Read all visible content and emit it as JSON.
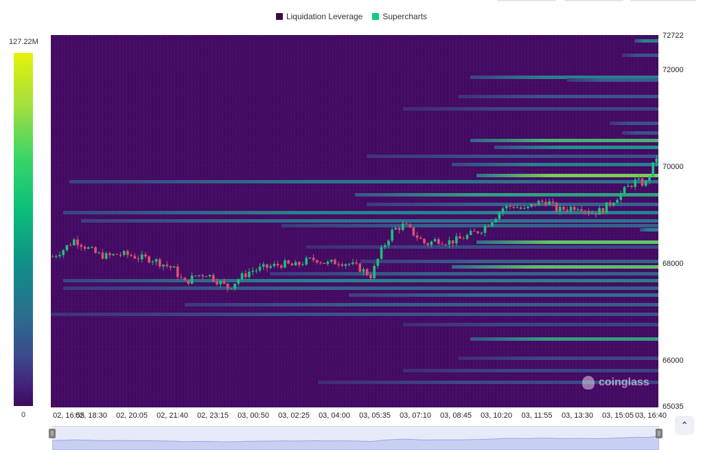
{
  "legend": [
    {
      "label": "Liquidation Leverage",
      "color": "#3b0a4e"
    },
    {
      "label": "Supercharts",
      "color": "#0ccf7a"
    }
  ],
  "colorbar": {
    "max_label": "127.22M",
    "min_label": "0"
  },
  "watermark": "coinglass",
  "colors": {
    "up": "#1fbf7a",
    "down": "#e0506e",
    "background": "#440a64"
  },
  "chart_data": {
    "type": "heatmap",
    "overlay": "candlestick",
    "title": "",
    "ylim": [
      65035,
      72722
    ],
    "y_ticks": [
      "72722",
      "72000",
      "70000",
      "68000",
      "66000",
      "65035"
    ],
    "x_ticks": [
      "02, 16:55",
      "02, 18:30",
      "02, 20:05",
      "02, 21:40",
      "02, 23:15",
      "03, 00:50",
      "03, 02:25",
      "03, 04:00",
      "03, 05:35",
      "03, 07:10",
      "03, 08:45",
      "03, 10:20",
      "03, 11:55",
      "03, 13:30",
      "03, 15:05",
      "03, 16:40"
    ],
    "colorscale_range": [
      0,
      127220000
    ],
    "price_close": [
      68150,
      68300,
      68500,
      68350,
      68200,
      68150,
      68200,
      68180,
      68120,
      68100,
      68000,
      67900,
      67600,
      67750,
      67800,
      67650,
      67500,
      67700,
      67850,
      67900,
      67950,
      68000,
      67950,
      68050,
      68100,
      68000,
      68050,
      68000,
      67900,
      67750,
      68300,
      68700,
      68800,
      68600,
      68400,
      68500,
      68450,
      68500,
      68600,
      68700,
      68900,
      69150,
      69200,
      69100,
      69250,
      69300,
      69100,
      69150,
      69200,
      69050,
      69100,
      69300,
      69500,
      69700,
      69650,
      70200
    ],
    "price_volatility": 80,
    "liquidation_bands": [
      {
        "price": 72600,
        "start": 0.96,
        "intensity": 0.45
      },
      {
        "price": 72300,
        "start": 0.94,
        "intensity": 0.3
      },
      {
        "price": 71850,
        "start": 0.69,
        "intensity": 0.45
      },
      {
        "price": 71800,
        "start": 0.85,
        "intensity": 0.35
      },
      {
        "price": 71450,
        "start": 0.67,
        "intensity": 0.3
      },
      {
        "price": 71200,
        "start": 0.58,
        "intensity": 0.25
      },
      {
        "price": 70900,
        "start": 0.92,
        "intensity": 0.3
      },
      {
        "price": 70700,
        "start": 0.94,
        "intensity": 0.3
      },
      {
        "price": 70550,
        "start": 0.69,
        "intensity": 0.62
      },
      {
        "price": 70400,
        "start": 0.73,
        "intensity": 0.5
      },
      {
        "price": 70220,
        "start": 0.52,
        "intensity": 0.3
      },
      {
        "price": 70050,
        "start": 0.66,
        "intensity": 0.45
      },
      {
        "price": 69820,
        "start": 0.7,
        "intensity": 0.75
      },
      {
        "price": 69700,
        "start": 0.03,
        "intensity": 0.4
      },
      {
        "price": 69430,
        "start": 0.5,
        "intensity": 0.55
      },
      {
        "price": 69230,
        "start": 0.52,
        "intensity": 0.35
      },
      {
        "price": 69050,
        "start": 0.02,
        "intensity": 0.45
      },
      {
        "price": 68880,
        "start": 0.05,
        "intensity": 0.4
      },
      {
        "price": 68780,
        "start": 0.38,
        "intensity": 0.35
      },
      {
        "price": 68700,
        "start": 0.97,
        "intensity": 0.45
      },
      {
        "price": 68450,
        "start": 0.7,
        "intensity": 0.7
      },
      {
        "price": 68350,
        "start": 0.42,
        "intensity": 0.25
      },
      {
        "price": 68050,
        "start": 0.51,
        "intensity": 0.35
      },
      {
        "price": 67930,
        "start": 0.66,
        "intensity": 0.68
      },
      {
        "price": 67800,
        "start": 0.36,
        "intensity": 0.35
      },
      {
        "price": 67650,
        "start": 0.02,
        "intensity": 0.45
      },
      {
        "price": 67500,
        "start": 0.02,
        "intensity": 0.35
      },
      {
        "price": 67350,
        "start": 0.49,
        "intensity": 0.4
      },
      {
        "price": 67150,
        "start": 0.22,
        "intensity": 0.35
      },
      {
        "price": 66950,
        "start": 0.0,
        "intensity": 0.3
      },
      {
        "price": 66750,
        "start": 0.58,
        "intensity": 0.25
      },
      {
        "price": 66450,
        "start": 0.69,
        "intensity": 0.55
      },
      {
        "price": 66050,
        "start": 0.67,
        "intensity": 0.25
      },
      {
        "price": 65800,
        "start": 0.58,
        "intensity": 0.25
      },
      {
        "price": 65550,
        "start": 0.44,
        "intensity": 0.25
      }
    ]
  }
}
